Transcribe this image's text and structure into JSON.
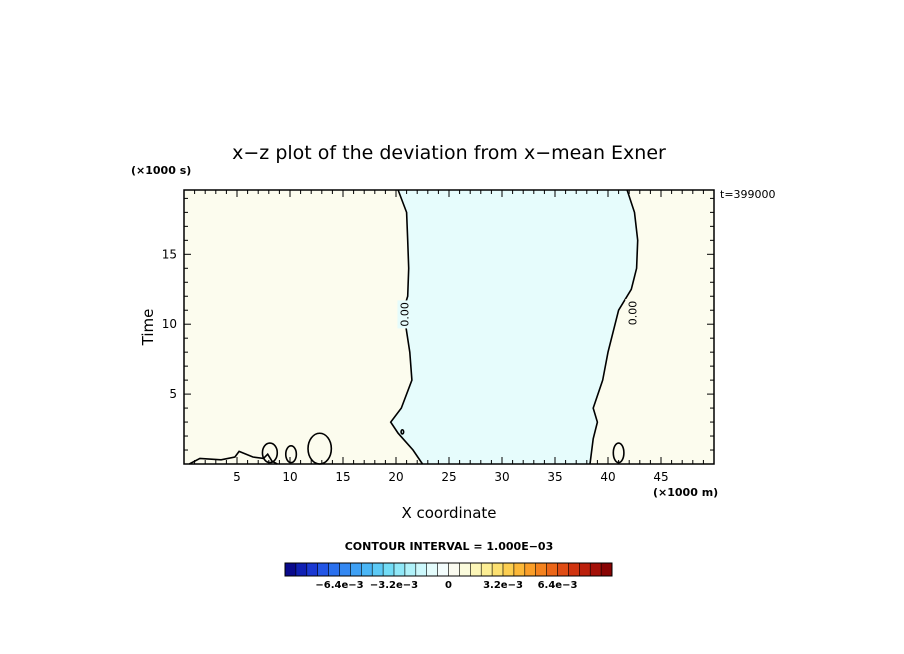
{
  "chart_data": {
    "type": "contour",
    "title": "x−z plot of the deviation from x−mean Exner",
    "xlabel": "X coordinate",
    "ylabel": "Time",
    "x_unit": "(×1000 m)",
    "y_unit": "(×1000 s)",
    "time_stamp": "t=399000",
    "xlim": [
      0,
      50
    ],
    "ylim": [
      0,
      19.6
    ],
    "x_ticks": [
      5,
      10,
      15,
      20,
      25,
      30,
      35,
      40,
      45
    ],
    "y_ticks": [
      5,
      10,
      15
    ],
    "contour_label": "0.00",
    "contour_interval_text": "CONTOUR INTERVAL = 1.000E−03",
    "colorbar": {
      "labels": [
        {
          "text": "−6.4e−3",
          "value": -0.0064
        },
        {
          "text": "−3.2e−3",
          "value": -0.0032
        },
        {
          "text": "0",
          "value": 0
        },
        {
          "text": "3.2e−3",
          "value": 0.0032
        },
        {
          "text": "6.4e−3",
          "value": 0.0064
        }
      ],
      "min": -0.0096,
      "max": 0.0096,
      "colors": [
        "#0a0a8c",
        "#1020b4",
        "#1a38d2",
        "#2255e6",
        "#2a70ee",
        "#3488f2",
        "#3ea0f4",
        "#4ab6f6",
        "#5ccaf6",
        "#72dcf6",
        "#90e8f8",
        "#b0f2fa",
        "#ccf8fc",
        "#e4fcfc",
        "#f4fdfd",
        "#fbfbf0",
        "#fbfbdc",
        "#fcf6b8",
        "#fcee94",
        "#fce070",
        "#fcce50",
        "#fcb838",
        "#fa9e28",
        "#f4821e",
        "#ec6618",
        "#e04c14",
        "#d03410",
        "#bc200c",
        "#a41008",
        "#880404"
      ]
    },
    "regions": [
      {
        "name": "negative",
        "value_sign": "-",
        "color": "#e6fcfc"
      },
      {
        "name": "positive",
        "value_sign": "+",
        "color": "#fcfcee"
      }
    ],
    "zero_contours": {
      "left_boundary": [
        [
          20.2,
          19.6
        ],
        [
          21.0,
          18.0
        ],
        [
          21.1,
          16.0
        ],
        [
          21.2,
          14.0
        ],
        [
          21.1,
          12.0
        ],
        [
          20.7,
          11.0
        ],
        [
          20.9,
          10.0
        ],
        [
          21.3,
          8.0
        ],
        [
          21.5,
          6.0
        ],
        [
          20.5,
          4.0
        ],
        [
          19.5,
          3.0
        ],
        [
          20.2,
          2.2
        ],
        [
          21.6,
          1.0
        ],
        [
          22.5,
          0
        ]
      ],
      "right_boundary": [
        [
          41.8,
          19.6
        ],
        [
          42.5,
          18.0
        ],
        [
          42.8,
          16.0
        ],
        [
          42.7,
          14.0
        ],
        [
          42.2,
          12.5
        ],
        [
          41.0,
          11.0
        ],
        [
          40.0,
          8.0
        ],
        [
          39.5,
          6.0
        ],
        [
          38.6,
          4.0
        ],
        [
          39.0,
          3.0
        ],
        [
          38.6,
          1.8
        ],
        [
          38.3,
          0
        ]
      ],
      "bottom_wiggle": [
        [
          0.5,
          0
        ],
        [
          1.5,
          0.4
        ],
        [
          3.5,
          0.3
        ],
        [
          4.8,
          0.5
        ],
        [
          5.2,
          0.9
        ],
        [
          6.5,
          0.5
        ],
        [
          7.5,
          0.4
        ],
        [
          7.9,
          0.7
        ],
        [
          8.3,
          0.2
        ],
        [
          8.8,
          0
        ]
      ],
      "blobs": [
        {
          "cx": 8.1,
          "cy": 0.8,
          "rx": 0.7,
          "ry": 0.7
        },
        {
          "cx": 10.1,
          "cy": 0.7,
          "rx": 0.5,
          "ry": 0.6
        },
        {
          "cx": 12.8,
          "cy": 1.1,
          "rx": 1.1,
          "ry": 1.1
        },
        {
          "cx": 41.0,
          "cy": 0.8,
          "rx": 0.5,
          "ry": 0.7
        },
        {
          "cx": 20.6,
          "cy": 2.3,
          "rx": 0.12,
          "ry": 0.15
        }
      ]
    }
  }
}
